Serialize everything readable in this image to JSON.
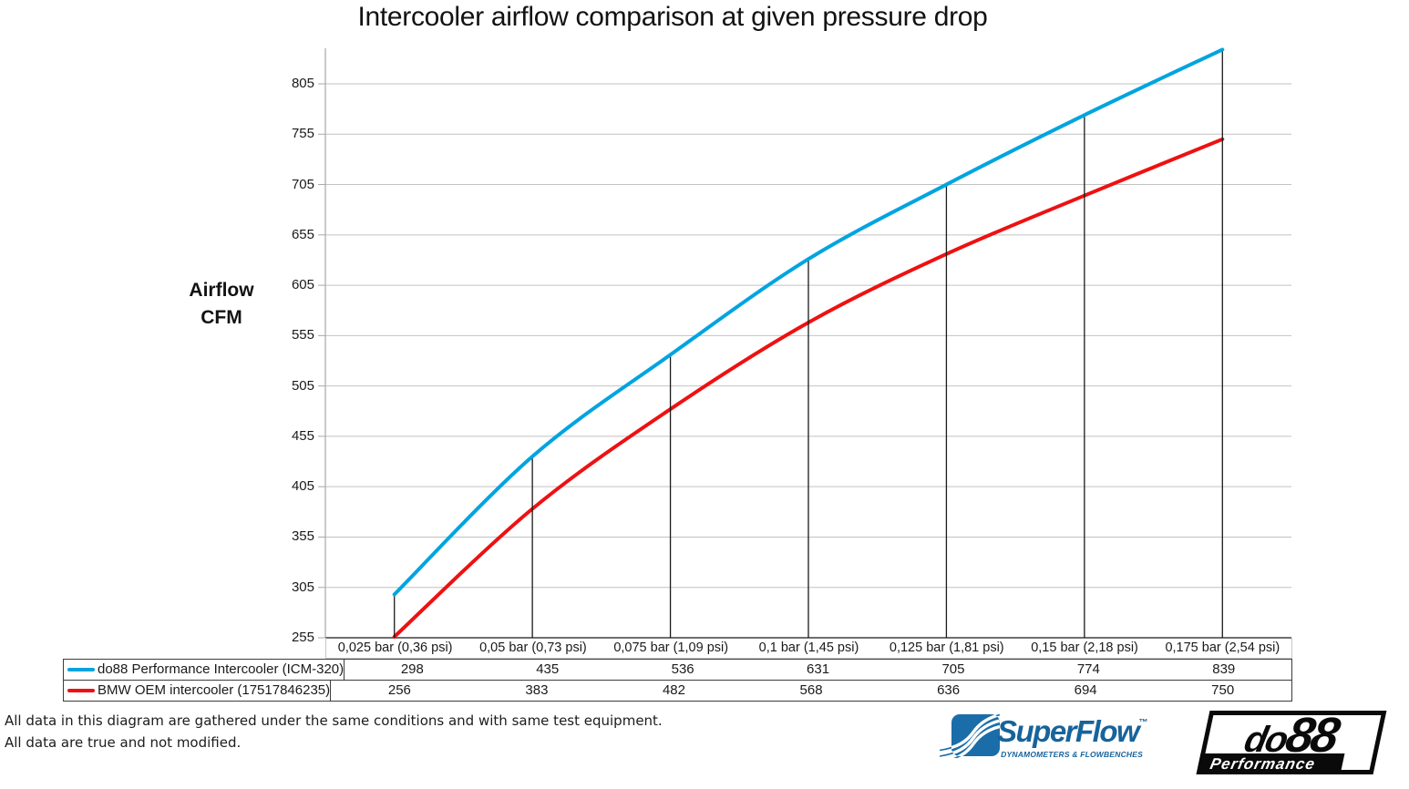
{
  "title": "Intercooler airflow comparison at given pressure drop",
  "y_axis_label": {
    "line1": "Airflow",
    "line2": "CFM"
  },
  "footer": {
    "line1": "All data in this diagram are gathered under the same conditions and with same test equipment.",
    "line2": "All data are true and not modified."
  },
  "logos": {
    "superflow": {
      "name": "SuperFlow",
      "mark": "™",
      "tagline": "DYNAMOMETERS & FLOWBENCHES",
      "color": "#17639B"
    },
    "do88": {
      "name": "do88",
      "tagline": "Performance",
      "color": "#0A0A0A"
    }
  },
  "chart_data": {
    "type": "line",
    "title": "Intercooler airflow comparison at given pressure drop",
    "xlabel": "",
    "ylabel": "Airflow CFM",
    "categories": [
      "0,025 bar (0,36 psi)",
      "0,05 bar (0,73 psi)",
      "0,075 bar (1,09 psi)",
      "0,1 bar (1,45 psi)",
      "0,125 bar (1,81 psi)",
      "0,15 bar (2,18 psi)",
      "0,175 bar (2,54 psi)"
    ],
    "series": [
      {
        "name": "do88 Performance Intercooler (ICM-320)",
        "color": "#00A4E0",
        "values": [
          298,
          435,
          536,
          631,
          705,
          774,
          839
        ]
      },
      {
        "name": "BMW OEM intercooler (17517846235)",
        "color": "#EE1111",
        "values": [
          256,
          383,
          482,
          568,
          636,
          694,
          750
        ]
      }
    ],
    "y_ticks": [
      255,
      305,
      355,
      405,
      455,
      505,
      555,
      605,
      655,
      705,
      755,
      805
    ],
    "ylim": [
      255,
      840
    ],
    "grid": "horizontal",
    "droplines": true,
    "legend_position": "table-left",
    "smooth_lines": true
  }
}
